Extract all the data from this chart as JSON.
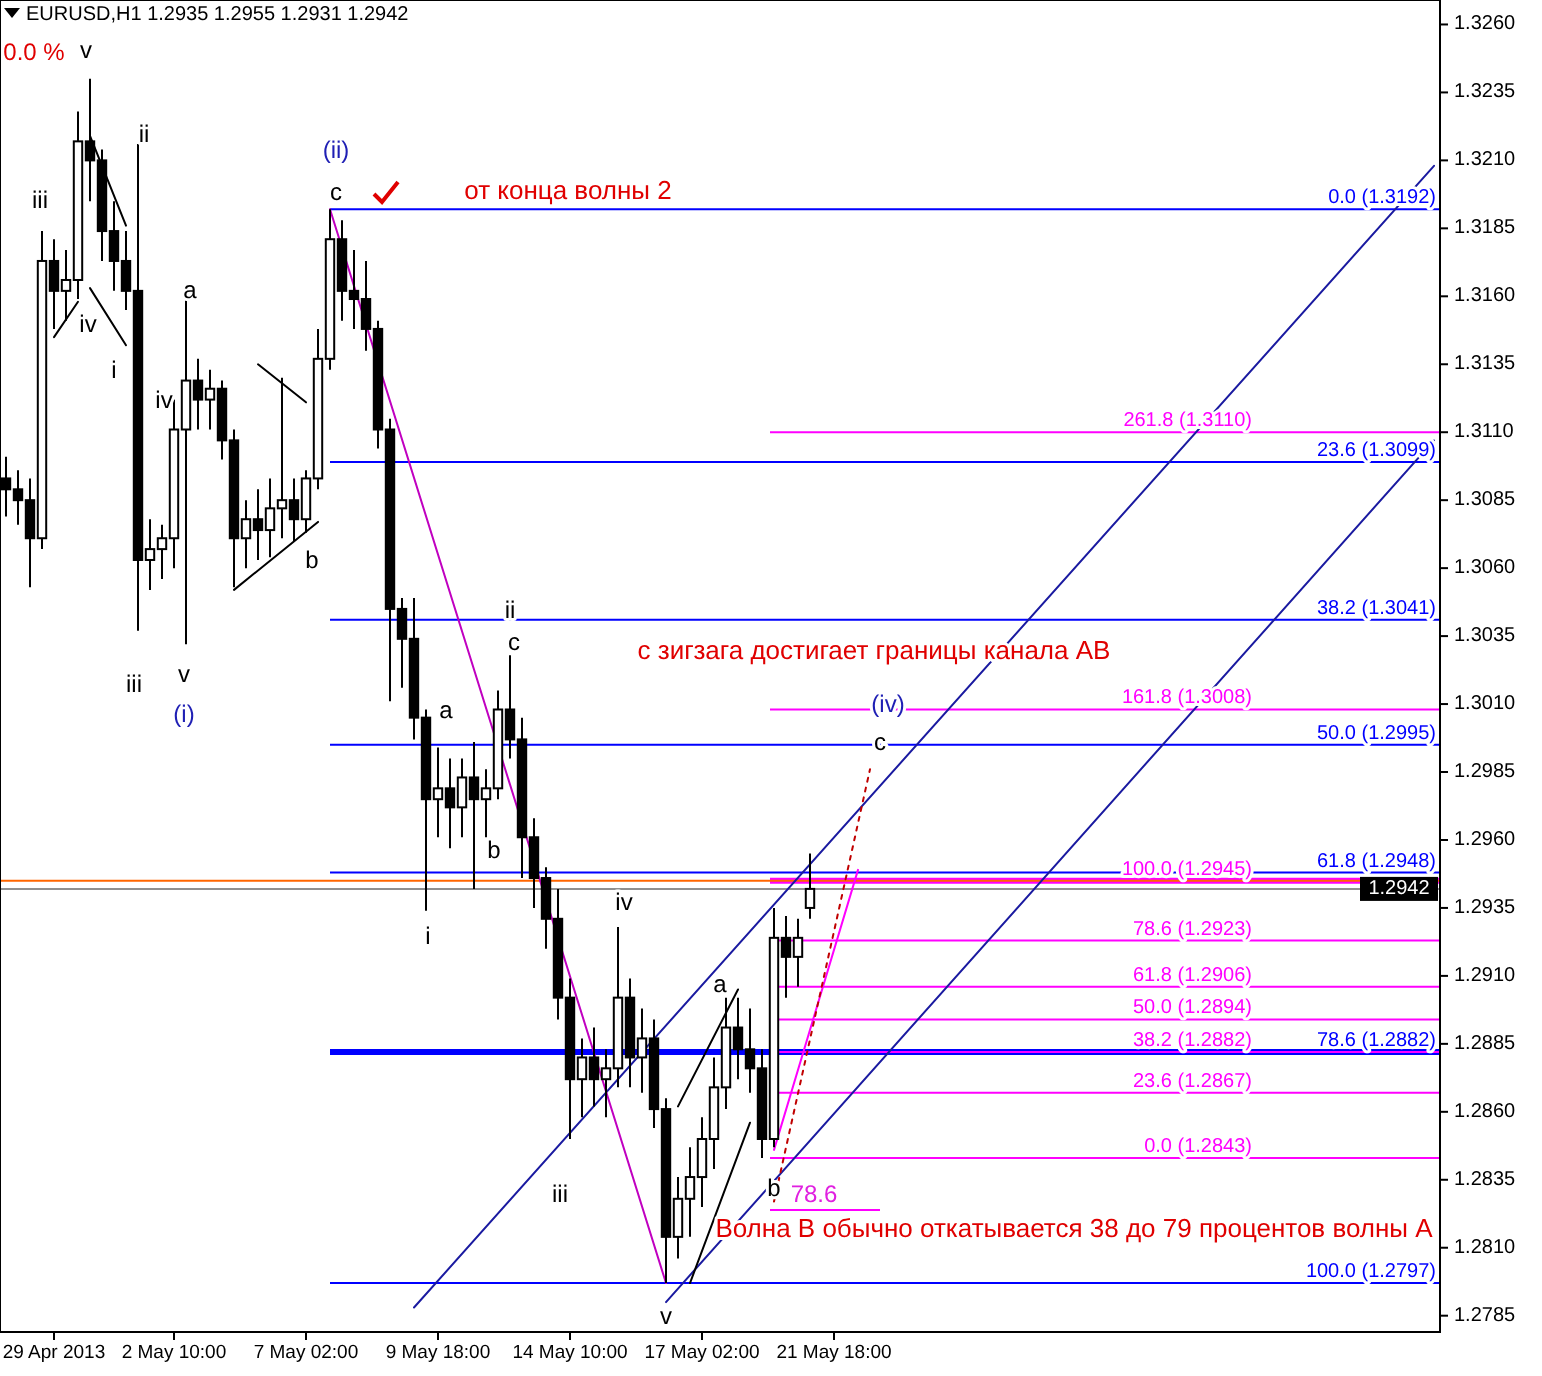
{
  "chart_data": {
    "type": "candlestick",
    "title": "EURUSD,H1  1.2935 1.2955 1.2931 1.2942",
    "color": "#000000",
    "categories": [
      null,
      null,
      null,
      null,
      "29 Apr 2013",
      null,
      null,
      null,
      null,
      null,
      null,
      null,
      null,
      null,
      "2 May 10:00",
      null,
      null,
      null,
      null,
      null,
      null,
      null,
      null,
      null,
      null,
      "7 May 02:00",
      null,
      null,
      null,
      null,
      null,
      null,
      null,
      null,
      null,
      null,
      "9 May 18:00",
      null,
      null,
      null,
      null,
      null,
      null,
      null,
      null,
      null,
      null,
      "14 May 10:00",
      null,
      null,
      null,
      null,
      null,
      null,
      null,
      null,
      null,
      null,
      "17 May 02:00",
      null,
      null,
      null,
      null,
      null,
      null,
      null,
      null,
      null,
      null,
      "21 May 18:00",
      null,
      null,
      null,
      null,
      null,
      null,
      null,
      null,
      null,
      null,
      null,
      null,
      null,
      null,
      null,
      null,
      null,
      null,
      null,
      null,
      null,
      null,
      null,
      null,
      null,
      null,
      null,
      null,
      null,
      null,
      null,
      null,
      null,
      null,
      null,
      null,
      null,
      null,
      null,
      null,
      null,
      null,
      null,
      null,
      null,
      null,
      null,
      null,
      null,
      null
    ],
    "ohlc": [
      [
        1.3093,
        1.3101,
        1.3079,
        1.3089
      ],
      [
        1.3089,
        1.3096,
        1.3076,
        1.3085
      ],
      [
        1.3085,
        1.3093,
        1.3053,
        1.3071
      ],
      [
        1.3071,
        1.3184,
        1.3067,
        1.3173
      ],
      [
        1.3173,
        1.3181,
        1.3148,
        1.3162
      ],
      [
        1.3162,
        1.3177,
        1.3151,
        1.3166
      ],
      [
        1.3166,
        1.3228,
        1.3159,
        1.3217
      ],
      [
        1.3217,
        1.324,
        1.3195,
        1.321
      ],
      [
        1.321,
        1.3214,
        1.3173,
        1.3184
      ],
      [
        1.3184,
        1.3195,
        1.3162,
        1.3173
      ],
      [
        1.3173,
        1.3184,
        1.3155,
        1.3162
      ],
      [
        1.3162,
        1.3216,
        1.3037,
        1.3063
      ],
      [
        1.3063,
        1.3078,
        1.3052,
        1.3067
      ],
      [
        1.3067,
        1.3076,
        1.3056,
        1.3071
      ],
      [
        1.3071,
        1.3122,
        1.306,
        1.3111
      ],
      [
        1.3111,
        1.3159,
        1.3032,
        1.3129
      ],
      [
        1.3129,
        1.3137,
        1.3111,
        1.3122
      ],
      [
        1.3122,
        1.3133,
        1.3111,
        1.3126
      ],
      [
        1.3126,
        1.3129,
        1.31,
        1.3107
      ],
      [
        1.3107,
        1.3111,
        1.3053,
        1.3071
      ],
      [
        1.3071,
        1.3085,
        1.306,
        1.3078
      ],
      [
        1.3078,
        1.3089,
        1.3063,
        1.3074
      ],
      [
        1.3074,
        1.3093,
        1.3064,
        1.3082
      ],
      [
        1.3082,
        1.313,
        1.3071,
        1.3085
      ],
      [
        1.3085,
        1.3093,
        1.307,
        1.3078
      ],
      [
        1.3078,
        1.3096,
        1.3073,
        1.3093
      ],
      [
        1.3093,
        1.3148,
        1.3089,
        1.3137
      ],
      [
        1.3137,
        1.3192,
        1.3133,
        1.3181
      ],
      [
        1.3181,
        1.3188,
        1.3151,
        1.3162
      ],
      [
        1.3162,
        1.3177,
        1.3148,
        1.3159
      ],
      [
        1.3159,
        1.3173,
        1.314,
        1.3148
      ],
      [
        1.3148,
        1.3151,
        1.3104,
        1.3111
      ],
      [
        1.3111,
        1.3115,
        1.3011,
        1.3045
      ],
      [
        1.3045,
        1.3049,
        1.3016,
        1.3034
      ],
      [
        1.3034,
        1.3049,
        1.2997,
        1.3005
      ],
      [
        1.3005,
        1.3008,
        1.2934,
        1.2975
      ],
      [
        1.2975,
        1.2994,
        1.2961,
        1.2979
      ],
      [
        1.2979,
        1.299,
        1.2957,
        1.2972
      ],
      [
        1.2972,
        1.299,
        1.2961,
        1.2983
      ],
      [
        1.2983,
        1.2996,
        1.2942,
        1.2975
      ],
      [
        1.2975,
        1.2986,
        1.2961,
        1.2979
      ],
      [
        1.2979,
        1.3015,
        1.2975,
        1.3008
      ],
      [
        1.3008,
        1.3028,
        1.299,
        1.2997
      ],
      [
        1.2997,
        1.3005,
        1.2946,
        1.2961
      ],
      [
        1.2961,
        1.2968,
        1.2935,
        1.2946
      ],
      [
        1.2946,
        1.295,
        1.292,
        1.2931
      ],
      [
        1.2931,
        1.2942,
        1.2894,
        1.2902
      ],
      [
        1.2902,
        1.2909,
        1.285,
        1.2872
      ],
      [
        1.2872,
        1.2887,
        1.2858,
        1.288
      ],
      [
        1.288,
        1.2891,
        1.2862,
        1.2872
      ],
      [
        1.2872,
        1.2883,
        1.2858,
        1.2876
      ],
      [
        1.2876,
        1.2928,
        1.2869,
        1.2902
      ],
      [
        1.2902,
        1.2909,
        1.2869,
        1.288
      ],
      [
        1.288,
        1.2898,
        1.2867,
        1.2887
      ],
      [
        1.2887,
        1.2894,
        1.2854,
        1.2861
      ],
      [
        1.2861,
        1.2865,
        1.2797,
        1.2814
      ],
      [
        1.2814,
        1.2836,
        1.2806,
        1.2828
      ],
      [
        1.2828,
        1.2847,
        1.2814,
        1.2836
      ],
      [
        1.2836,
        1.2858,
        1.2825,
        1.285
      ],
      [
        1.285,
        1.288,
        1.2839,
        1.2869
      ],
      [
        1.2869,
        1.2902,
        1.2861,
        1.2891
      ],
      [
        1.2891,
        1.2902,
        1.2872,
        1.2883
      ],
      [
        1.2883,
        1.2898,
        1.2867,
        1.2876
      ],
      [
        1.2876,
        1.2883,
        1.2843,
        1.285
      ],
      [
        1.285,
        1.2935,
        1.2847,
        1.2924
      ],
      [
        1.2924,
        1.2932,
        1.2902,
        1.2917
      ],
      [
        1.2917,
        1.2931,
        1.2906,
        1.2924
      ],
      [
        1.2935,
        1.2955,
        1.2931,
        1.2942
      ],
      null,
      null,
      null,
      null,
      null,
      null,
      null,
      null,
      null,
      null,
      null,
      null,
      null,
      null,
      null,
      null,
      null,
      null,
      null,
      null,
      null,
      null,
      null,
      null,
      null,
      null,
      null,
      null,
      null,
      null,
      null,
      null,
      null,
      null,
      null,
      null,
      null,
      null,
      null,
      null,
      null,
      null,
      null,
      null,
      null,
      null,
      null,
      null,
      null,
      null,
      null,
      null
    ],
    "ylim": [
      1.2779,
      1.3269
    ],
    "yticks": [
      1.2785,
      {
        "value": 1.281,
        "label": "1.2810"
      },
      1.2835,
      {
        "value": 1.286,
        "label": "1.2860"
      },
      1.2885,
      {
        "value": 1.291,
        "label": "1.2910"
      },
      1.2935,
      {
        "value": 1.296,
        "label": "1.2960"
      },
      1.2985,
      {
        "value": 1.301,
        "label": "1.3010"
      },
      1.3035,
      {
        "value": 1.306,
        "label": "1.3060"
      },
      1.3085,
      {
        "value": 1.311,
        "label": "1.3110"
      },
      1.3135,
      {
        "value": 1.316,
        "label": "1.3160"
      },
      1.3185,
      {
        "value": 1.321,
        "label": "1.3210"
      },
      1.3235,
      {
        "value": 1.326,
        "label": "1.3260"
      }
    ],
    "series": [
      {
        "type": "line",
        "color": "#1a1aa0",
        "values": [
          null,
          null,
          null,
          null,
          null,
          null,
          null,
          null,
          null,
          null,
          null,
          null,
          null,
          null,
          null,
          null,
          null,
          null,
          null,
          null,
          null,
          null,
          null,
          null,
          null,
          null,
          null,
          null,
          null,
          null,
          null,
          null,
          null,
          null,
          1.2788,
          null,
          null,
          null,
          null,
          null,
          null,
          null,
          null,
          null,
          null,
          null,
          null,
          null,
          null,
          null,
          null,
          null,
          null,
          null,
          null,
          null,
          null,
          null,
          null,
          null,
          null,
          null,
          null,
          null,
          null,
          null,
          null,
          null,
          null,
          null,
          null,
          null,
          null,
          null,
          null,
          null,
          null,
          null,
          null,
          null,
          null,
          null,
          null,
          null,
          null,
          null,
          null,
          null,
          null,
          null,
          null,
          null,
          null,
          null,
          null,
          null,
          null,
          null,
          null,
          null,
          null,
          null,
          null,
          null,
          null,
          null,
          null,
          null,
          null,
          null,
          null,
          null,
          null,
          null,
          null,
          null,
          null,
          null,
          null,
          1.3208
        ]
      },
      {
        "type": "line",
        "color": "#1a1aa0",
        "values": [
          null,
          null,
          null,
          null,
          null,
          null,
          null,
          null,
          null,
          null,
          null,
          null,
          null,
          null,
          null,
          null,
          null,
          null,
          null,
          null,
          null,
          null,
          null,
          null,
          null,
          null,
          null,
          null,
          null,
          null,
          null,
          null,
          null,
          null,
          null,
          null,
          null,
          null,
          null,
          null,
          null,
          null,
          null,
          null,
          null,
          null,
          null,
          null,
          null,
          null,
          null,
          null,
          null,
          null,
          null,
          1.279,
          null,
          null,
          null,
          null,
          null,
          null,
          null,
          null,
          null,
          null,
          null,
          null,
          null,
          null,
          null,
          null,
          null,
          null,
          null,
          null,
          null,
          null,
          null,
          null,
          null,
          null,
          null,
          null,
          null,
          null,
          null,
          null,
          null,
          null,
          null,
          null,
          null,
          null,
          null,
          null,
          null,
          null,
          null,
          null,
          null,
          null,
          null,
          null,
          null,
          null,
          null,
          null,
          null,
          null,
          null,
          null,
          null,
          null,
          null,
          null,
          null,
          null,
          null,
          1.3107
        ]
      },
      {
        "type": "line",
        "color": "#c000c0",
        "values": [
          null,
          null,
          null,
          null,
          null,
          null,
          null,
          null,
          null,
          null,
          null,
          null,
          null,
          null,
          null,
          null,
          null,
          null,
          null,
          null,
          null,
          null,
          null,
          null,
          null,
          null,
          null,
          1.3192,
          null,
          null,
          null,
          null,
          null,
          null,
          null,
          null,
          null,
          null,
          null,
          null,
          null,
          null,
          null,
          null,
          null,
          null,
          null,
          null,
          null,
          null,
          null,
          null,
          null,
          null,
          null,
          1.2797,
          null,
          null,
          null,
          null,
          null,
          null,
          null,
          null,
          null,
          null,
          null,
          null,
          null,
          null,
          null,
          null,
          null,
          null,
          null,
          null,
          null,
          null,
          null,
          null,
          null,
          null,
          null,
          null,
          null,
          null,
          null,
          null,
          null,
          null,
          null,
          null,
          null,
          null,
          null,
          null,
          null,
          null,
          null,
          null,
          null,
          null,
          null,
          null,
          null,
          null,
          null,
          null,
          null,
          null,
          null,
          null,
          null,
          null,
          null,
          null,
          null,
          null,
          null,
          null
        ]
      },
      {
        "type": "line",
        "color": "#ff00ff",
        "values": [
          null,
          null,
          null,
          null,
          null,
          null,
          null,
          null,
          null,
          null,
          null,
          null,
          null,
          null,
          null,
          null,
          null,
          null,
          null,
          null,
          null,
          null,
          null,
          null,
          null,
          null,
          null,
          null,
          null,
          null,
          null,
          null,
          null,
          null,
          null,
          null,
          null,
          null,
          null,
          null,
          null,
          null,
          null,
          null,
          null,
          null,
          null,
          null,
          null,
          null,
          null,
          null,
          null,
          null,
          null,
          null,
          null,
          null,
          null,
          null,
          null,
          null,
          null,
          null,
          1.2846,
          null,
          null,
          null,
          null,
          null,
          null,
          1.2949,
          null,
          null,
          null,
          null,
          null,
          null,
          null,
          null,
          null,
          null,
          null,
          null,
          null,
          null,
          null,
          null,
          null,
          null,
          null,
          null,
          null,
          null,
          null,
          null,
          null,
          null,
          null,
          null,
          null,
          null,
          null,
          null,
          null,
          null,
          null,
          null,
          null,
          null,
          null,
          null,
          null,
          null,
          null,
          null,
          null,
          null,
          null,
          null
        ]
      },
      {
        "type": "line",
        "color": "#c00000",
        "line_style": "dotted",
        "values": [
          null,
          null,
          null,
          null,
          null,
          null,
          null,
          null,
          null,
          null,
          null,
          null,
          null,
          null,
          null,
          null,
          null,
          null,
          null,
          null,
          null,
          null,
          null,
          null,
          null,
          null,
          null,
          null,
          null,
          null,
          null,
          null,
          null,
          null,
          null,
          null,
          null,
          null,
          null,
          null,
          null,
          null,
          null,
          null,
          null,
          null,
          null,
          null,
          null,
          null,
          null,
          null,
          null,
          null,
          null,
          null,
          null,
          null,
          null,
          null,
          null,
          null,
          null,
          null,
          1.2827,
          null,
          null,
          null,
          null,
          null,
          null,
          null,
          1.2986,
          null,
          null,
          null,
          null,
          null,
          null,
          null,
          null,
          null,
          null,
          null,
          null,
          null,
          null,
          null,
          null,
          null,
          null,
          null,
          null,
          null,
          null,
          null,
          null,
          null,
          null,
          null,
          null,
          null,
          null,
          null,
          null,
          null,
          null,
          null,
          null,
          null,
          null,
          null,
          null,
          null,
          null,
          null,
          null,
          null,
          null,
          null
        ]
      },
      {
        "type": "line",
        "color": "#000000",
        "values": [
          null,
          null,
          null,
          null,
          null,
          null,
          null,
          1.3219,
          null,
          null,
          1.3186,
          null,
          null,
          null,
          null,
          null,
          null,
          null,
          null,
          null,
          null,
          null,
          null,
          null,
          null,
          null,
          null,
          null,
          null,
          null,
          null,
          null,
          null,
          null,
          null,
          null,
          null,
          null,
          null,
          null,
          null,
          null,
          null,
          null,
          null,
          null,
          null,
          null,
          null,
          null,
          null,
          null,
          null,
          null,
          null,
          null,
          null,
          null,
          null,
          null,
          null,
          null,
          null,
          null,
          null,
          null,
          null,
          null,
          null,
          null,
          null,
          null,
          null,
          null,
          null,
          null,
          null,
          null,
          null,
          null,
          null,
          null,
          null,
          null,
          null,
          null,
          null,
          null,
          null,
          null,
          null,
          null,
          null,
          null,
          null,
          null,
          null,
          null,
          null,
          null,
          null,
          null,
          null,
          null,
          null,
          null,
          null,
          null,
          null,
          null,
          null,
          null,
          null,
          null,
          null,
          null,
          null,
          null,
          null,
          null
        ]
      },
      {
        "type": "line",
        "color": "#000000",
        "values": [
          null,
          null,
          null,
          null,
          null,
          null,
          null,
          1.3163,
          null,
          null,
          1.3142,
          null,
          null,
          null,
          null,
          null,
          null,
          null,
          null,
          null,
          null,
          null,
          null,
          null,
          null,
          null,
          null,
          null,
          null,
          null,
          null,
          null,
          null,
          null,
          null,
          null,
          null,
          null,
          null,
          null,
          null,
          null,
          null,
          null,
          null,
          null,
          null,
          null,
          null,
          null,
          null,
          null,
          null,
          null,
          null,
          null,
          null,
          null,
          null,
          null,
          null,
          null,
          null,
          null,
          null,
          null,
          null,
          null,
          null,
          null,
          null,
          null,
          null,
          null,
          null,
          null,
          null,
          null,
          null,
          null,
          null,
          null,
          null,
          null,
          null,
          null,
          null,
          null,
          null,
          null,
          null,
          null,
          null,
          null,
          null,
          null,
          null,
          null,
          null,
          null,
          null,
          null,
          null,
          null,
          null,
          null,
          null,
          null,
          null,
          null,
          null,
          null,
          null,
          null,
          null,
          null,
          null,
          null,
          null,
          null
        ]
      },
      {
        "type": "line",
        "color": "#000000",
        "values": [
          null,
          null,
          null,
          null,
          1.3145,
          null,
          1.3158,
          null,
          null,
          null,
          null,
          null,
          null,
          null,
          null,
          null,
          null,
          null,
          null,
          null,
          null,
          null,
          null,
          null,
          null,
          null,
          null,
          null,
          null,
          null,
          null,
          null,
          null,
          null,
          null,
          null,
          null,
          null,
          null,
          null,
          null,
          null,
          null,
          null,
          null,
          null,
          null,
          null,
          null,
          null,
          null,
          null,
          null,
          null,
          null,
          null,
          null,
          null,
          null,
          null,
          null,
          null,
          null,
          null,
          null,
          null,
          null,
          null,
          null,
          null,
          null,
          null,
          null,
          null,
          null,
          null,
          null,
          null,
          null,
          null,
          null,
          null,
          null,
          null,
          null,
          null,
          null,
          null,
          null,
          null,
          null,
          null,
          null,
          null,
          null,
          null,
          null,
          null,
          null,
          null,
          null,
          null,
          null,
          null,
          null,
          null,
          null,
          null,
          null,
          null,
          null,
          null,
          null,
          null,
          null,
          null,
          null,
          null,
          null,
          null
        ]
      },
      {
        "type": "line",
        "color": "#000000",
        "values": [
          null,
          null,
          null,
          null,
          null,
          null,
          null,
          null,
          null,
          null,
          null,
          null,
          null,
          null,
          null,
          null,
          null,
          null,
          null,
          1.3052,
          null,
          null,
          null,
          null,
          null,
          null,
          1.3077,
          null,
          null,
          null,
          null,
          null,
          null,
          null,
          null,
          null,
          null,
          null,
          null,
          null,
          null,
          null,
          null,
          null,
          null,
          null,
          null,
          null,
          null,
          null,
          null,
          null,
          null,
          null,
          null,
          null,
          null,
          null,
          null,
          null,
          null,
          null,
          null,
          null,
          null,
          null,
          null,
          null,
          null,
          null,
          null,
          null,
          null,
          null,
          null,
          null,
          null,
          null,
          null,
          null,
          null,
          null,
          null,
          null,
          null,
          null,
          null,
          null,
          null,
          null,
          null,
          null,
          null,
          null,
          null,
          null,
          null,
          null,
          null,
          null,
          null,
          null,
          null,
          null,
          null,
          null,
          null,
          null,
          null,
          null,
          null,
          null,
          null,
          null,
          null,
          null,
          null,
          null,
          null,
          null
        ]
      },
      {
        "type": "line",
        "color": "#000000",
        "values": [
          null,
          null,
          null,
          null,
          null,
          null,
          null,
          null,
          null,
          null,
          null,
          null,
          null,
          null,
          null,
          null,
          null,
          null,
          null,
          null,
          null,
          1.3135,
          null,
          null,
          null,
          1.3121,
          null,
          null,
          null,
          null,
          null,
          null,
          null,
          null,
          null,
          null,
          null,
          null,
          null,
          null,
          null,
          null,
          null,
          null,
          null,
          null,
          null,
          null,
          null,
          null,
          null,
          null,
          null,
          null,
          null,
          null,
          null,
          null,
          null,
          null,
          null,
          null,
          null,
          null,
          null,
          null,
          null,
          null,
          null,
          null,
          null,
          null,
          null,
          null,
          null,
          null,
          null,
          null,
          null,
          null,
          null,
          null,
          null,
          null,
          null,
          null,
          null,
          null,
          null,
          null,
          null,
          null,
          null,
          null,
          null,
          null,
          null,
          null,
          null,
          null,
          null,
          null,
          null,
          null,
          null,
          null,
          null,
          null,
          null,
          null,
          null,
          null,
          null,
          null,
          null,
          null,
          null,
          null,
          null,
          null
        ]
      },
      {
        "type": "line",
        "color": "#000000",
        "values": [
          null,
          null,
          null,
          null,
          null,
          null,
          null,
          null,
          null,
          null,
          null,
          null,
          null,
          null,
          null,
          null,
          null,
          null,
          null,
          null,
          null,
          null,
          null,
          null,
          null,
          null,
          null,
          null,
          null,
          null,
          null,
          null,
          null,
          null,
          null,
          null,
          null,
          null,
          null,
          null,
          null,
          null,
          null,
          null,
          null,
          null,
          null,
          null,
          null,
          null,
          null,
          null,
          null,
          null,
          null,
          null,
          1.2862,
          null,
          null,
          null,
          null,
          1.2905,
          null,
          null,
          null,
          null,
          null,
          null,
          null,
          null,
          null,
          null,
          null,
          null,
          null,
          null,
          null,
          null,
          null,
          null,
          null,
          null,
          null,
          null,
          null,
          null,
          null,
          null,
          null,
          null,
          null,
          null,
          null,
          null,
          null,
          null,
          null,
          null,
          null,
          null,
          null,
          null,
          null,
          null,
          null,
          null,
          null,
          null,
          null,
          null,
          null,
          null,
          null,
          null,
          null,
          null,
          null,
          null,
          null,
          null
        ]
      },
      {
        "type": "line",
        "color": "#000000",
        "values": [
          null,
          null,
          null,
          null,
          null,
          null,
          null,
          null,
          null,
          null,
          null,
          null,
          null,
          null,
          null,
          null,
          null,
          null,
          null,
          null,
          null,
          null,
          null,
          null,
          null,
          null,
          null,
          null,
          null,
          null,
          null,
          null,
          null,
          null,
          null,
          null,
          null,
          null,
          null,
          null,
          null,
          null,
          null,
          null,
          null,
          null,
          null,
          null,
          null,
          null,
          null,
          null,
          null,
          null,
          null,
          null,
          null,
          1.2797,
          null,
          null,
          null,
          null,
          1.2856,
          null,
          null,
          null,
          null,
          null,
          null,
          null,
          null,
          null,
          null,
          null,
          null,
          null,
          null,
          null,
          null,
          null,
          null,
          null,
          null,
          null,
          null,
          null,
          null,
          null,
          null,
          null,
          null,
          null,
          null,
          null,
          null,
          null,
          null,
          null,
          null,
          null,
          null,
          null,
          null,
          null,
          null,
          null,
          null,
          null,
          null,
          null,
          null,
          null,
          null,
          null,
          null,
          null,
          null,
          null,
          null,
          null
        ]
      }
    ],
    "ref_lines": [
      {
        "axis": "y",
        "value": 1.3192,
        "label": "0.0 (1.3192)",
        "color": "#0000ff"
      },
      {
        "axis": "y",
        "value": 1.3099,
        "label": "23.6 (1.3099)",
        "color": "#0000ff"
      },
      {
        "axis": "y",
        "value": 1.3041,
        "label": "38.2 (1.3041)",
        "color": "#0000ff"
      },
      {
        "axis": "y",
        "value": 1.2995,
        "label": "50.0 (1.2995)",
        "color": "#0000ff"
      },
      {
        "axis": "y",
        "value": 1.2948,
        "label": "61.8 (1.2948)",
        "color": "#0000ff"
      },
      {
        "axis": "y",
        "value": 1.2882,
        "label": "78.6 (1.2882)",
        "color": "#0000ff"
      },
      {
        "axis": "y",
        "value": 1.2797,
        "label": "100.0 (1.2797)",
        "color": "#0000ff"
      },
      {
        "axis": "y",
        "value": 1.311,
        "label": "261.8 (1.3110)",
        "color": "#ff00ff"
      },
      {
        "axis": "y",
        "value": 1.3008,
        "label": "161.8 (1.3008)",
        "color": "#ff00ff"
      },
      {
        "axis": "y",
        "value": 1.2945,
        "label": "100.0 (1.2945)",
        "color": "#ff00ff"
      },
      {
        "axis": "y",
        "value": 1.2923,
        "label": "78.6 (1.2923)",
        "color": "#ff00ff"
      },
      {
        "axis": "y",
        "value": 1.2906,
        "label": "61.8 (1.2906)",
        "color": "#ff00ff"
      },
      {
        "axis": "y",
        "value": 1.2894,
        "label": "50.0 (1.2894)",
        "color": "#ff00ff"
      },
      {
        "axis": "y",
        "value": 1.2882,
        "label": "38.2 (1.2882)",
        "color": "#ff00ff"
      },
      {
        "axis": "y",
        "value": 1.2867,
        "label": "23.6 (1.2867)",
        "color": "#ff00ff"
      },
      {
        "axis": "y",
        "value": 1.2843,
        "label": "0.0 (1.2843)",
        "color": "#ff00ff"
      },
      {
        "axis": "y",
        "value": 1.2945,
        "label": null,
        "color": "#ff6600"
      },
      {
        "axis": "y",
        "value": 1.2942,
        "label": "1.2942",
        "color": "#909090"
      }
    ],
    "annotations": [
      "v",
      "iii",
      "ii",
      "iv",
      "i",
      "iv",
      "a",
      "iii",
      "v",
      "b",
      "c",
      "ii",
      "c",
      "a",
      "b",
      "i",
      "iv",
      "iii",
      "v",
      "a",
      "b",
      "c",
      "(i)",
      "(ii)",
      "(iv)",
      "от конца волны 2",
      "с зигзага достигает границы канала AB",
      "Волна B обычно откатывается 38 до 79 процентов волны A",
      "78.6",
      "0.0 %"
    ]
  }
}
